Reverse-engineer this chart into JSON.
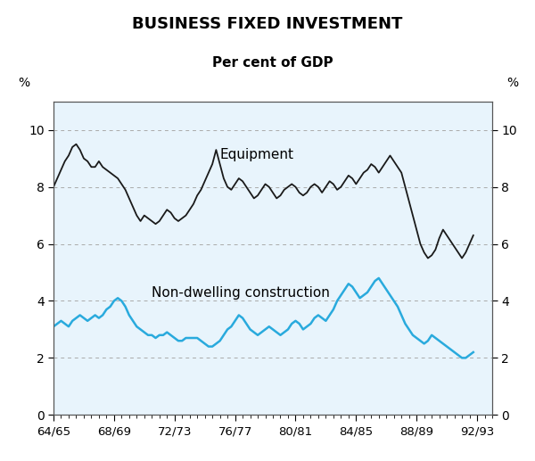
{
  "title": "BUSINESS FIXED INVESTMENT",
  "subtitle": "Per cent of GDP",
  "ylabel_left": "%",
  "ylabel_right": "%",
  "background_color": "#ffffff",
  "plot_bg_color": "#e8f4fc",
  "title_fontsize": 13,
  "subtitle_fontsize": 11,
  "xlim": [
    0,
    116
  ],
  "ylim": [
    0,
    11
  ],
  "yticks": [
    0,
    2,
    4,
    6,
    8,
    10
  ],
  "xtick_labels": [
    "64/65",
    "68/69",
    "72/73",
    "76/77",
    "80/81",
    "84/85",
    "88/89",
    "92/93"
  ],
  "xtick_positions": [
    0,
    16,
    32,
    48,
    64,
    80,
    96,
    112
  ],
  "grid_color": "#aaaaaa",
  "grid_yticks": [
    2,
    4,
    6,
    8,
    10
  ],
  "equipment_label": "Equipment",
  "construction_label": "Non-dwelling construction",
  "equipment_color": "#1a1a1a",
  "construction_color": "#29aadd",
  "equipment_data": [
    8.0,
    8.3,
    8.6,
    8.9,
    9.1,
    9.4,
    9.5,
    9.3,
    9.0,
    8.9,
    8.7,
    8.7,
    8.9,
    8.7,
    8.6,
    8.5,
    8.4,
    8.3,
    8.1,
    7.9,
    7.6,
    7.3,
    7.0,
    6.8,
    7.0,
    6.9,
    6.8,
    6.7,
    6.8,
    7.0,
    7.2,
    7.1,
    6.9,
    6.8,
    6.9,
    7.0,
    7.2,
    7.4,
    7.7,
    7.9,
    8.2,
    8.5,
    8.8,
    9.3,
    8.8,
    8.3,
    8.0,
    7.9,
    8.1,
    8.3,
    8.2,
    8.0,
    7.8,
    7.6,
    7.7,
    7.9,
    8.1,
    8.0,
    7.8,
    7.6,
    7.7,
    7.9,
    8.0,
    8.1,
    8.0,
    7.8,
    7.7,
    7.8,
    8.0,
    8.1,
    8.0,
    7.8,
    8.0,
    8.2,
    8.1,
    7.9,
    8.0,
    8.2,
    8.4,
    8.3,
    8.1,
    8.3,
    8.5,
    8.6,
    8.8,
    8.7,
    8.5,
    8.7,
    8.9,
    9.1,
    8.9,
    8.7,
    8.5,
    8.0,
    7.5,
    7.0,
    6.5,
    6.0,
    5.7,
    5.5,
    5.6,
    5.8,
    6.2,
    6.5,
    6.3,
    6.1,
    5.9,
    5.7,
    5.5,
    5.7,
    6.0,
    6.3
  ],
  "construction_data": [
    3.1,
    3.2,
    3.3,
    3.2,
    3.1,
    3.3,
    3.4,
    3.5,
    3.4,
    3.3,
    3.4,
    3.5,
    3.4,
    3.5,
    3.7,
    3.8,
    4.0,
    4.1,
    4.0,
    3.8,
    3.5,
    3.3,
    3.1,
    3.0,
    2.9,
    2.8,
    2.8,
    2.7,
    2.8,
    2.8,
    2.9,
    2.8,
    2.7,
    2.6,
    2.6,
    2.7,
    2.7,
    2.7,
    2.7,
    2.6,
    2.5,
    2.4,
    2.4,
    2.5,
    2.6,
    2.8,
    3.0,
    3.1,
    3.3,
    3.5,
    3.4,
    3.2,
    3.0,
    2.9,
    2.8,
    2.9,
    3.0,
    3.1,
    3.0,
    2.9,
    2.8,
    2.9,
    3.0,
    3.2,
    3.3,
    3.2,
    3.0,
    3.1,
    3.2,
    3.4,
    3.5,
    3.4,
    3.3,
    3.5,
    3.7,
    4.0,
    4.2,
    4.4,
    4.6,
    4.5,
    4.3,
    4.1,
    4.2,
    4.3,
    4.5,
    4.7,
    4.8,
    4.6,
    4.4,
    4.2,
    4.0,
    3.8,
    3.5,
    3.2,
    3.0,
    2.8,
    2.7,
    2.6,
    2.5,
    2.6,
    2.8,
    2.7,
    2.6,
    2.5,
    2.4,
    2.3,
    2.2,
    2.1,
    2.0,
    2.0,
    2.1,
    2.2
  ]
}
